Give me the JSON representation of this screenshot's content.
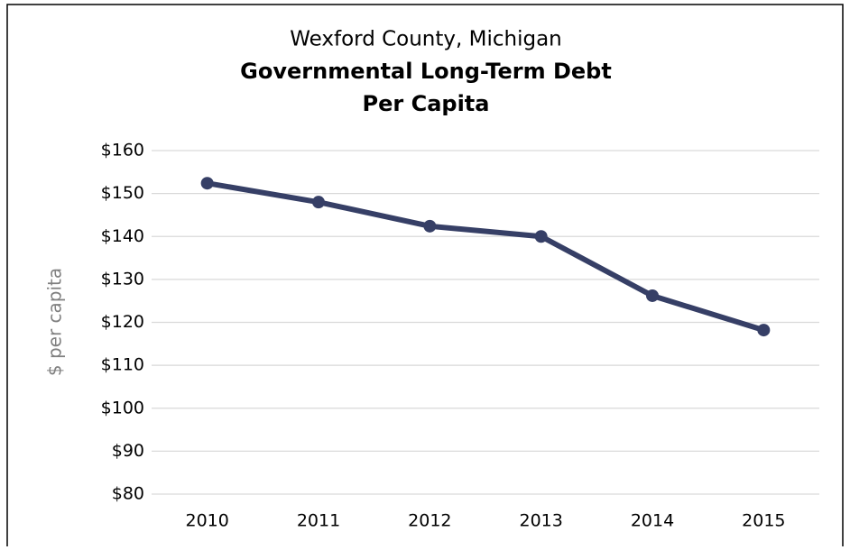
{
  "chart_data": {
    "type": "line",
    "subtitle": "Wexford County, Michigan",
    "title": [
      "Governmental Long-Term Debt",
      "Per Capita"
    ],
    "y_label": "$ per capita",
    "categories": [
      "2010",
      "2011",
      "2012",
      "2013",
      "2014",
      "2015"
    ],
    "series": [
      {
        "name": "Governmental Long-Term Debt Per Capita",
        "color": "#363f66",
        "values": [
          152.4,
          148.0,
          142.4,
          140.0,
          126.2,
          118.2
        ]
      }
    ],
    "ylim": [
      80,
      160
    ],
    "yticks": [
      {
        "value": 80,
        "label": "$80"
      },
      {
        "value": 90,
        "label": "$90"
      },
      {
        "value": 100,
        "label": "$100"
      },
      {
        "value": 110,
        "label": "$110"
      },
      {
        "value": 120,
        "label": "$120"
      },
      {
        "value": 130,
        "label": "$130"
      },
      {
        "value": 140,
        "label": "$140"
      },
      {
        "value": 150,
        "label": "$150"
      },
      {
        "value": 160,
        "label": "$160"
      }
    ],
    "grid": true,
    "legend": false
  }
}
